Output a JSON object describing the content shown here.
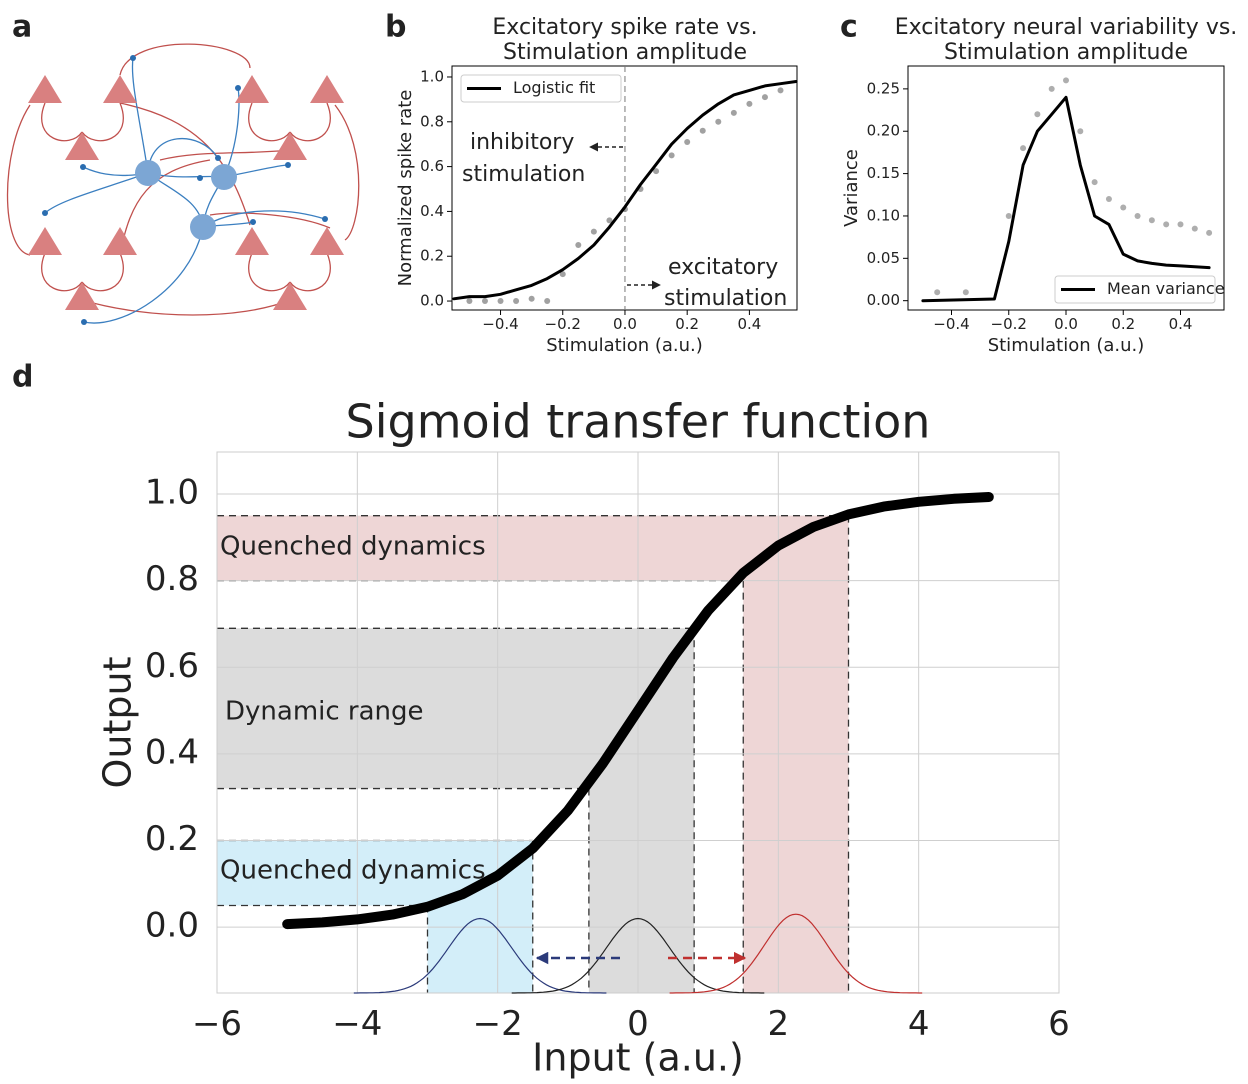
{
  "panel_labels": [
    "a",
    "b",
    "c",
    "d"
  ],
  "chart_data": [
    {
      "type": "line",
      "title": [
        "Excitatory spike rate vs.",
        "Stimulation amplitude"
      ],
      "xlabel": "Stimulation (a.u.)",
      "ylabel": "Normalized spike rate",
      "xlim": [
        -0.556,
        0.553
      ],
      "ylim": [
        -0.04,
        1.049
      ],
      "xticks": [
        {
          "value": -0.4,
          "label": "−0.4"
        },
        {
          "value": -0.2,
          "label": "−0.2"
        },
        {
          "value": 0,
          "label": "0.0"
        },
        0.2,
        0.4
      ],
      "yticks": [
        {
          "value": 0,
          "label": "0.0"
        },
        0.2,
        0.4,
        0.6,
        0.8,
        {
          "value": 1,
          "label": "1.0"
        }
      ],
      "vline": 0,
      "legend": "upper left",
      "annotations": [
        "inhibitory",
        "stimulation",
        "excitatory",
        "stimulation"
      ],
      "series": [
        {
          "type": "scatter",
          "color": "#8a8a8a",
          "x": [
            -0.5,
            -0.45,
            -0.4,
            -0.35,
            -0.3,
            -0.25,
            -0.2,
            -0.15,
            -0.1,
            -0.05,
            0,
            0.05,
            0.1,
            0.15,
            0.2,
            0.25,
            0.3,
            0.35,
            0.4,
            0.45,
            0.5
          ],
          "values": [
            0.0,
            0.0,
            0.0,
            0.0,
            0.01,
            0.0,
            0.12,
            0.25,
            0.31,
            0.36,
            0.41,
            0.5,
            0.58,
            0.65,
            0.71,
            0.76,
            0.8,
            0.84,
            0.88,
            0.91,
            0.94
          ]
        },
        {
          "name": "Logistic fit",
          "type": "line",
          "color": "#000000",
          "x": [
            -0.55,
            -0.5,
            -0.45,
            -0.4,
            -0.35,
            -0.3,
            -0.25,
            -0.2,
            -0.15,
            -0.1,
            -0.05,
            0,
            0.05,
            0.1,
            0.15,
            0.2,
            0.25,
            0.3,
            0.35,
            0.4,
            0.45,
            0.5,
            0.55
          ],
          "values": [
            0.01,
            0.02,
            0.02,
            0.03,
            0.05,
            0.07,
            0.1,
            0.14,
            0.19,
            0.25,
            0.33,
            0.42,
            0.52,
            0.61,
            0.7,
            0.77,
            0.83,
            0.88,
            0.92,
            0.94,
            0.96,
            0.97,
            0.98
          ]
        }
      ]
    },
    {
      "type": "line",
      "title": [
        "Excitatory neural variability vs.",
        "Stimulation amplitude"
      ],
      "xlabel": "Stimulation (a.u.)",
      "ylabel": "Variance",
      "xlim": [
        -0.552,
        0.552
      ],
      "ylim": [
        -0.011,
        0.277
      ],
      "xticks": [
        {
          "value": -0.4,
          "label": "−0.4"
        },
        {
          "value": -0.2,
          "label": "−0.2"
        },
        {
          "value": 0,
          "label": "0.0"
        },
        0.2,
        0.4
      ],
      "yticks": [
        {
          "value": 0,
          "label": "0.00"
        },
        0.05,
        {
          "value": 0.1,
          "label": "0.10"
        },
        0.15,
        {
          "value": 0.2,
          "label": "0.20"
        },
        0.25
      ],
      "legend": "lower right",
      "series": [
        {
          "type": "scatter",
          "color": "#9a9a9a",
          "x": [
            -0.45,
            -0.35,
            -0.2,
            -0.15,
            -0.1,
            -0.05,
            0,
            0.05,
            0.1,
            0.15,
            0.2,
            0.25,
            0.3,
            0.35,
            0.4,
            0.45,
            0.5
          ],
          "values": [
            0.01,
            0.01,
            0.1,
            0.18,
            0.22,
            0.25,
            0.26,
            0.2,
            0.14,
            0.12,
            0.11,
            0.1,
            0.095,
            0.09,
            0.09,
            0.085,
            0.08
          ]
        },
        {
          "name": "Mean variance",
          "type": "line",
          "color": "#000000",
          "x": [
            -0.5,
            -0.25,
            -0.2,
            -0.15,
            -0.1,
            -0.05,
            0,
            0.05,
            0.1,
            0.15,
            0.2,
            0.25,
            0.3,
            0.35,
            0.4,
            0.5
          ],
          "values": [
            0.0,
            0.002,
            0.07,
            0.16,
            0.2,
            0.22,
            0.24,
            0.16,
            0.1,
            0.09,
            0.055,
            0.047,
            0.044,
            0.042,
            0.041,
            0.039
          ]
        }
      ]
    },
    {
      "type": "line",
      "title": [
        "Sigmoid transfer function"
      ],
      "xlabel": "Input (a.u.)",
      "ylabel": "Output",
      "xlim": [
        -6,
        6
      ],
      "ylim": [
        -0.152,
        1.097
      ],
      "grid": true,
      "xticks": [
        {
          "value": -6,
          "label": "−6"
        },
        {
          "value": -4,
          "label": "−4"
        },
        {
          "value": -2,
          "label": "−2"
        },
        0,
        2,
        4,
        6
      ],
      "yticks": [
        {
          "value": 0,
          "label": "0.0"
        },
        0.2,
        0.4,
        0.6,
        0.8,
        {
          "value": 1,
          "label": "1.0"
        }
      ],
      "regions": [
        {
          "label": "Quenched dynamics",
          "color": "#d3eef9",
          "x": [
            -3,
            -1.5
          ],
          "y": [
            0.05,
            0.2
          ]
        },
        {
          "label": "Dynamic range",
          "color": "#dcdcdc",
          "x": [
            -0.7,
            0.8
          ],
          "y": [
            0.32,
            0.69
          ]
        },
        {
          "label": "Quenched dynamics",
          "color": "#eed6d6",
          "x": [
            1.5,
            3
          ],
          "y": [
            0.8,
            0.95
          ]
        }
      ],
      "bumps": [
        {
          "center": -2.25,
          "peak": 0.02,
          "sigma": 0.45,
          "color": "#2b3a7a"
        },
        {
          "center": 0,
          "peak": 0.02,
          "sigma": 0.45,
          "color": "#222222"
        },
        {
          "center": 2.25,
          "peak": 0.03,
          "sigma": 0.45,
          "color": "#c0302f"
        }
      ],
      "series": [
        {
          "type": "line",
          "color": "#000000",
          "x": [
            -5,
            -4.5,
            -4,
            -3.5,
            -3,
            -2.5,
            -2,
            -1.5,
            -1,
            -0.5,
            0,
            0.5,
            1,
            1.5,
            2,
            2.5,
            3,
            3.5,
            4,
            4.5,
            5
          ],
          "values": [
            0.007,
            0.011,
            0.018,
            0.029,
            0.047,
            0.076,
            0.119,
            0.182,
            0.269,
            0.378,
            0.5,
            0.622,
            0.731,
            0.818,
            0.881,
            0.924,
            0.953,
            0.971,
            0.982,
            0.989,
            0.993
          ]
        }
      ]
    }
  ]
}
